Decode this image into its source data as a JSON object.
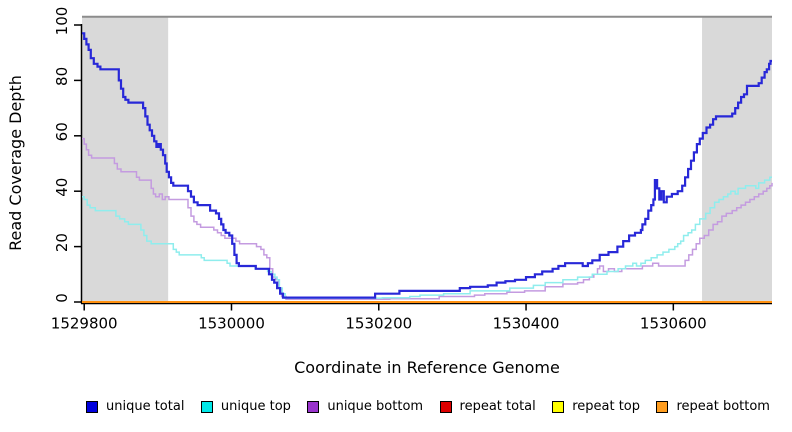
{
  "chart_data": {
    "type": "line",
    "subtype": "step-coverage-plot",
    "title": "",
    "xlabel": "Coordinate in Reference Genome",
    "ylabel": "Read Coverage Depth",
    "xlim": [
      1529797,
      1530734
    ],
    "ylim": [
      0,
      100
    ],
    "x_ticks": [
      1529800,
      1530000,
      1530200,
      1530400,
      1530600
    ],
    "y_ticks": [
      0,
      20,
      40,
      60,
      80,
      100
    ],
    "grid": false,
    "legend_position": "bottom",
    "background_color": "#ffffff",
    "shade_color": "#d9d9d9",
    "top_rule_color": "#8c8c8c",
    "top_rule_depth": 103,
    "shaded_regions": [
      {
        "x0": 1529797,
        "x1": 1529914
      },
      {
        "x0": 1530639,
        "x1": 1530734
      }
    ],
    "series": [
      {
        "name": "repeat total",
        "line_color": "#dd0000",
        "swatch_color": "#dd0000",
        "line_width": 1.8,
        "points": [
          [
            1529797,
            0
          ],
          [
            1530734,
            0
          ]
        ]
      },
      {
        "name": "repeat top",
        "line_color": "#ffff00",
        "swatch_color": "#ffff00",
        "line_width": 1.8,
        "points": [
          [
            1529797,
            0
          ],
          [
            1530734,
            0
          ]
        ]
      },
      {
        "name": "repeat bottom",
        "line_color": "#ff9010",
        "swatch_color": "#ff9d1f",
        "line_width": 2,
        "points": [
          [
            1529797,
            0
          ],
          [
            1530734,
            0
          ]
        ]
      },
      {
        "name": "unique bottom",
        "line_color": "#c49be0",
        "swatch_color": "#9933cc",
        "line_width": 1.5,
        "points": [
          [
            1529797,
            59
          ],
          [
            1529800,
            57
          ],
          [
            1529803,
            55
          ],
          [
            1529806,
            53
          ],
          [
            1529810,
            52
          ],
          [
            1529841,
            50
          ],
          [
            1529845,
            48
          ],
          [
            1529850,
            47
          ],
          [
            1529871,
            45
          ],
          [
            1529875,
            44
          ],
          [
            1529891,
            41
          ],
          [
            1529894,
            39
          ],
          [
            1529897,
            38
          ],
          [
            1529902,
            39
          ],
          [
            1529906,
            37
          ],
          [
            1529910,
            38
          ],
          [
            1529915,
            37
          ],
          [
            1529941,
            34
          ],
          [
            1529945,
            31
          ],
          [
            1529949,
            29
          ],
          [
            1529953,
            28
          ],
          [
            1529958,
            27
          ],
          [
            1529976,
            26
          ],
          [
            1529981,
            25
          ],
          [
            1529986,
            24
          ],
          [
            1529991,
            23
          ],
          [
            1530006,
            22
          ],
          [
            1530011,
            21
          ],
          [
            1530034,
            20
          ],
          [
            1530040,
            19
          ],
          [
            1530044,
            17
          ],
          [
            1530048,
            16
          ],
          [
            1530052,
            12
          ],
          [
            1530056,
            9
          ],
          [
            1530060,
            8
          ],
          [
            1530064,
            5
          ],
          [
            1530068,
            2
          ],
          [
            1530074,
            1
          ],
          [
            1530215,
            1.2
          ],
          [
            1530282,
            2
          ],
          [
            1530330,
            2.5
          ],
          [
            1530344,
            3
          ],
          [
            1530374,
            3.5
          ],
          [
            1530398,
            4
          ],
          [
            1530426,
            5.5
          ],
          [
            1530450,
            6.5
          ],
          [
            1530470,
            7
          ],
          [
            1530478,
            8
          ],
          [
            1530486,
            9
          ],
          [
            1530492,
            10
          ],
          [
            1530497,
            12
          ],
          [
            1530500,
            13
          ],
          [
            1530505,
            11
          ],
          [
            1530512,
            12
          ],
          [
            1530520,
            11
          ],
          [
            1530530,
            12
          ],
          [
            1530545,
            12
          ],
          [
            1530558,
            13
          ],
          [
            1530572,
            14
          ],
          [
            1530580,
            13
          ],
          [
            1530600,
            13
          ],
          [
            1530610,
            13
          ],
          [
            1530616,
            15
          ],
          [
            1530621,
            17
          ],
          [
            1530626,
            19
          ],
          [
            1530631,
            21
          ],
          [
            1530636,
            23
          ],
          [
            1530642,
            24
          ],
          [
            1530648,
            26
          ],
          [
            1530654,
            28
          ],
          [
            1530660,
            29
          ],
          [
            1530666,
            31
          ],
          [
            1530672,
            32
          ],
          [
            1530680,
            33
          ],
          [
            1530686,
            34
          ],
          [
            1530692,
            35
          ],
          [
            1530698,
            36
          ],
          [
            1530704,
            37
          ],
          [
            1530710,
            38
          ],
          [
            1530716,
            39
          ],
          [
            1530722,
            40
          ],
          [
            1530727,
            41
          ],
          [
            1530731,
            42
          ],
          [
            1530734,
            43
          ]
        ]
      },
      {
        "name": "unique top",
        "line_color": "#8feded",
        "swatch_color": "#00e8e8",
        "line_width": 1.5,
        "points": [
          [
            1529797,
            38
          ],
          [
            1529800,
            37
          ],
          [
            1529804,
            35
          ],
          [
            1529808,
            34
          ],
          [
            1529815,
            33
          ],
          [
            1529843,
            31
          ],
          [
            1529848,
            30
          ],
          [
            1529855,
            29
          ],
          [
            1529860,
            28
          ],
          [
            1529877,
            26
          ],
          [
            1529881,
            24
          ],
          [
            1529885,
            22
          ],
          [
            1529891,
            21
          ],
          [
            1529921,
            19
          ],
          [
            1529925,
            18
          ],
          [
            1529929,
            17
          ],
          [
            1529959,
            16
          ],
          [
            1529963,
            15
          ],
          [
            1529994,
            14
          ],
          [
            1529998,
            13
          ],
          [
            1530032,
            12
          ],
          [
            1530049,
            11
          ],
          [
            1530054,
            10
          ],
          [
            1530059,
            9
          ],
          [
            1530062,
            8
          ],
          [
            1530065,
            5
          ],
          [
            1530069,
            3
          ],
          [
            1530073,
            1.4
          ],
          [
            1530205,
            1.5
          ],
          [
            1530242,
            2
          ],
          [
            1530256,
            2.5
          ],
          [
            1530288,
            3
          ],
          [
            1530324,
            4
          ],
          [
            1530378,
            5
          ],
          [
            1530410,
            6
          ],
          [
            1530426,
            7
          ],
          [
            1530450,
            8
          ],
          [
            1530470,
            9
          ],
          [
            1530490,
            10
          ],
          [
            1530510,
            11
          ],
          [
            1530525,
            12
          ],
          [
            1530535,
            13
          ],
          [
            1530545,
            14
          ],
          [
            1530550,
            13
          ],
          [
            1530556,
            14
          ],
          [
            1530562,
            15
          ],
          [
            1530570,
            16
          ],
          [
            1530578,
            17
          ],
          [
            1530586,
            18
          ],
          [
            1530594,
            19
          ],
          [
            1530602,
            20
          ],
          [
            1530606,
            21
          ],
          [
            1530610,
            22
          ],
          [
            1530614,
            24
          ],
          [
            1530620,
            25
          ],
          [
            1530625,
            26
          ],
          [
            1530630,
            28
          ],
          [
            1530636,
            30
          ],
          [
            1530644,
            32
          ],
          [
            1530650,
            34
          ],
          [
            1530656,
            36
          ],
          [
            1530662,
            37
          ],
          [
            1530668,
            38
          ],
          [
            1530674,
            39
          ],
          [
            1530678,
            40
          ],
          [
            1530684,
            39
          ],
          [
            1530688,
            41
          ],
          [
            1530698,
            42
          ],
          [
            1530708,
            42
          ],
          [
            1530712,
            41
          ],
          [
            1530716,
            43
          ],
          [
            1530724,
            44
          ],
          [
            1530731,
            45
          ],
          [
            1530734,
            45
          ]
        ]
      },
      {
        "name": "unique total",
        "line_color": "#2828d8",
        "swatch_color": "#0000dd",
        "line_width": 2.2,
        "points": [
          [
            1529797,
            97
          ],
          [
            1529800,
            95
          ],
          [
            1529803,
            93
          ],
          [
            1529806,
            91
          ],
          [
            1529809,
            88
          ],
          [
            1529813,
            86
          ],
          [
            1529818,
            85
          ],
          [
            1529822,
            84
          ],
          [
            1529847,
            80
          ],
          [
            1529850,
            77
          ],
          [
            1529853,
            74
          ],
          [
            1529856,
            73
          ],
          [
            1529860,
            72
          ],
          [
            1529880,
            70
          ],
          [
            1529883,
            67
          ],
          [
            1529886,
            64
          ],
          [
            1529889,
            62
          ],
          [
            1529892,
            60
          ],
          [
            1529895,
            58
          ],
          [
            1529898,
            56
          ],
          [
            1529901,
            57
          ],
          [
            1529904,
            55
          ],
          [
            1529907,
            53
          ],
          [
            1529910,
            50
          ],
          [
            1529912,
            47
          ],
          [
            1529915,
            45
          ],
          [
            1529918,
            43
          ],
          [
            1529921,
            42
          ],
          [
            1529941,
            40
          ],
          [
            1529945,
            38
          ],
          [
            1529949,
            36
          ],
          [
            1529954,
            35
          ],
          [
            1529971,
            33
          ],
          [
            1529979,
            32
          ],
          [
            1529983,
            30
          ],
          [
            1529986,
            28
          ],
          [
            1529989,
            26
          ],
          [
            1529992,
            25
          ],
          [
            1529997,
            24
          ],
          [
            1530001,
            21
          ],
          [
            1530004,
            17
          ],
          [
            1530007,
            14
          ],
          [
            1530010,
            13
          ],
          [
            1530029,
            13
          ],
          [
            1530033,
            12
          ],
          [
            1530051,
            10
          ],
          [
            1530055,
            8
          ],
          [
            1530058,
            7
          ],
          [
            1530062,
            5
          ],
          [
            1530066,
            3
          ],
          [
            1530070,
            1.6
          ],
          [
            1530195,
            3
          ],
          [
            1530228,
            4
          ],
          [
            1530256,
            4
          ],
          [
            1530310,
            5
          ],
          [
            1530324,
            5.5
          ],
          [
            1530348,
            6
          ],
          [
            1530360,
            7
          ],
          [
            1530372,
            7.5
          ],
          [
            1530385,
            8
          ],
          [
            1530400,
            9
          ],
          [
            1530412,
            10
          ],
          [
            1530422,
            11
          ],
          [
            1530436,
            12
          ],
          [
            1530444,
            13
          ],
          [
            1530453,
            14
          ],
          [
            1530463,
            14
          ],
          [
            1530470,
            14
          ],
          [
            1530477,
            13
          ],
          [
            1530484,
            14
          ],
          [
            1530490,
            15
          ],
          [
            1530500,
            17
          ],
          [
            1530512,
            18
          ],
          [
            1530524,
            20
          ],
          [
            1530532,
            22
          ],
          [
            1530540,
            24
          ],
          [
            1530548,
            25
          ],
          [
            1530556,
            26
          ],
          [
            1530558,
            28
          ],
          [
            1530562,
            30
          ],
          [
            1530566,
            33
          ],
          [
            1530570,
            35
          ],
          [
            1530573,
            37
          ],
          [
            1530575,
            44
          ],
          [
            1530578,
            41
          ],
          [
            1530581,
            37
          ],
          [
            1530584,
            40
          ],
          [
            1530587,
            36
          ],
          [
            1530591,
            38
          ],
          [
            1530598,
            39
          ],
          [
            1530606,
            40
          ],
          [
            1530612,
            42
          ],
          [
            1530616,
            45
          ],
          [
            1530620,
            48
          ],
          [
            1530624,
            51
          ],
          [
            1530628,
            54
          ],
          [
            1530632,
            57
          ],
          [
            1530636,
            59
          ],
          [
            1530640,
            61
          ],
          [
            1530645,
            63
          ],
          [
            1530650,
            64
          ],
          [
            1530654,
            66
          ],
          [
            1530658,
            67
          ],
          [
            1530680,
            68
          ],
          [
            1530684,
            70
          ],
          [
            1530688,
            72
          ],
          [
            1530692,
            74
          ],
          [
            1530696,
            75
          ],
          [
            1530700,
            78
          ],
          [
            1530716,
            79
          ],
          [
            1530720,
            81
          ],
          [
            1530724,
            83
          ],
          [
            1530727,
            84
          ],
          [
            1530730,
            86
          ],
          [
            1530732,
            87
          ],
          [
            1530734,
            87
          ]
        ]
      }
    ],
    "legend": [
      "unique total",
      "unique top",
      "unique bottom",
      "repeat total",
      "repeat top",
      "repeat bottom"
    ]
  }
}
